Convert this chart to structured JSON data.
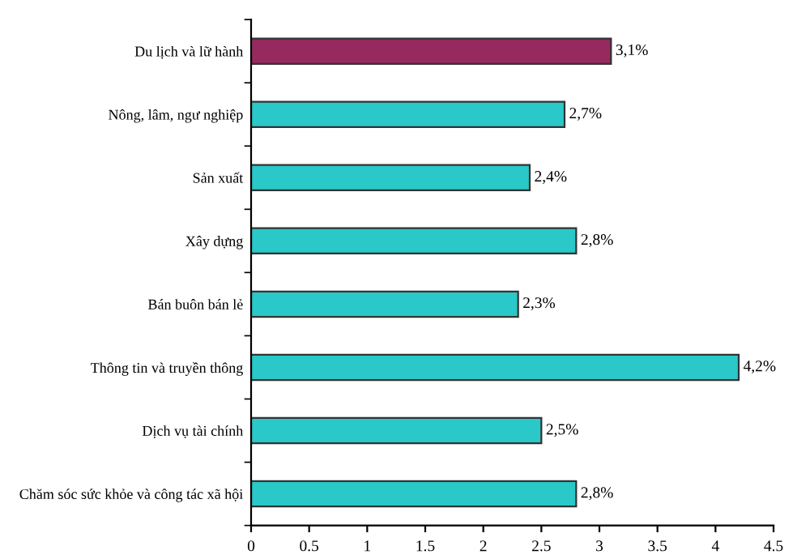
{
  "chart_data": {
    "type": "bar",
    "orientation": "horizontal",
    "categories": [
      "Du lịch và lữ hành",
      "Nông, lâm, ngư nghiệp",
      "Sản xuất",
      "Xây dựng",
      "Bán buôn bán lẻ",
      "Thông tin và truyền thông",
      "Dịch vụ tài chính",
      "Chăm sóc sức khỏe và công tác xã hội"
    ],
    "values": [
      3.1,
      2.7,
      2.4,
      2.8,
      2.3,
      4.2,
      2.5,
      2.8
    ],
    "colors": [
      "#962a5e",
      "#2ac8c8",
      "#2ac8c8",
      "#2ac8c8",
      "#2ac8c8",
      "#2ac8c8",
      "#2ac8c8",
      "#2ac8c8"
    ],
    "value_labels": [
      "3,1%",
      "2,7%",
      "2,4%",
      "2,8%",
      "2,3%",
      "4,2%",
      "2,5%",
      "2,8%"
    ],
    "xlim": [
      0,
      4.5
    ],
    "xticks": [
      0,
      0.5,
      1,
      1.5,
      2,
      2.5,
      3,
      3.5,
      4,
      4.5
    ],
    "grid": false,
    "legend": false
  }
}
